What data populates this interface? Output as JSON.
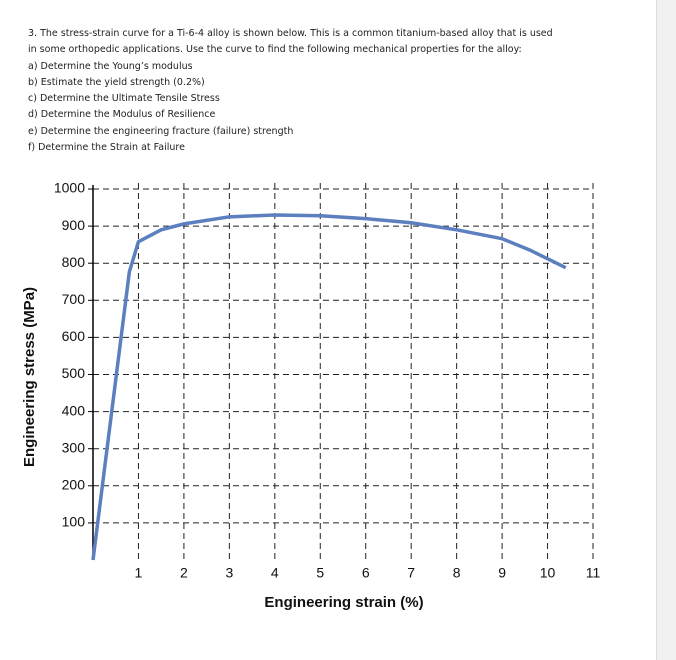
{
  "question": {
    "lines": [
      "3.   The stress-strain curve for a Ti-6-4 alloy is shown below. This is a common titanium-based alloy that is used",
      "in some orthopedic applications. Use the curve to find the following mechanical properties for the alloy:",
      "a) Determine the Young’s modulus",
      "b) Estimate the yield strength (0.2%)",
      "c) Determine the Ultimate Tensile Stress",
      "d) Determine the Modulus of Resilience",
      "e) Determine the engineering fracture (failure) strength",
      "f) Determine the Strain at Failure"
    ]
  },
  "chart_data": {
    "type": "line",
    "x_label": "Engineering strain (%)",
    "y_label": "Engineering stress (MPa)",
    "x": [
      0,
      0.8,
      1.0,
      1.5,
      2,
      3,
      4,
      5,
      6,
      7,
      8,
      9,
      9.6,
      10.4
    ],
    "series": [
      {
        "color": "#5b7fbf",
        "values": [
          0,
          777,
          858,
          890,
          906,
          925,
          930,
          928,
          920,
          909,
          890,
          866,
          836,
          788
        ]
      }
    ],
    "xlim": [
      0,
      11
    ],
    "ylim": [
      0,
      1000
    ],
    "xticks": [
      1,
      2,
      3,
      4,
      5,
      6,
      7,
      8,
      9,
      10,
      11
    ],
    "yticks": [
      100,
      200,
      300,
      400,
      500,
      600,
      700,
      800,
      900,
      1000
    ],
    "grid": true
  }
}
